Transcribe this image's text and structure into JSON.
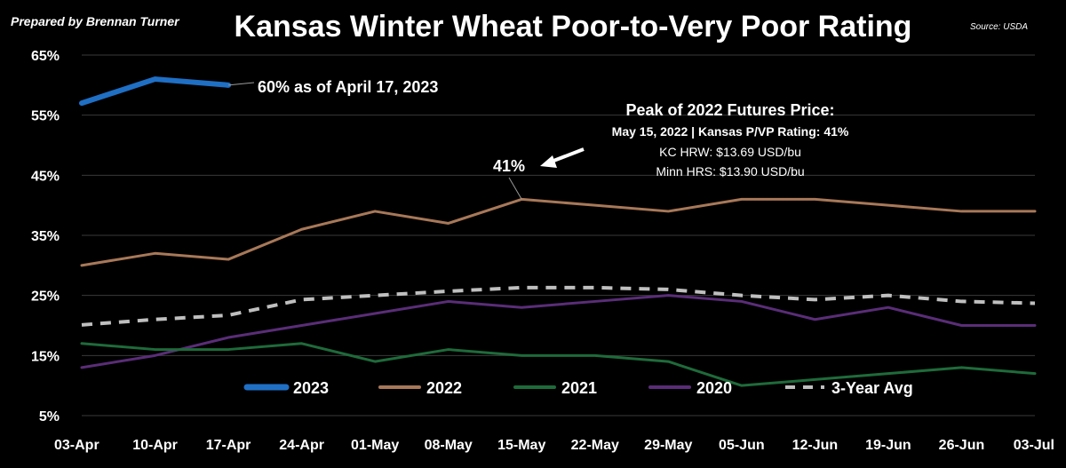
{
  "credit": "Prepared by Brennan Turner",
  "source": "Source: USDA",
  "chart_data": {
    "type": "line",
    "title": "Kansas Winter Wheat Poor-to-Very Poor Rating",
    "xlabel": "",
    "ylabel": "",
    "categories": [
      "03-Apr",
      "10-Apr",
      "17-Apr",
      "24-Apr",
      "01-May",
      "08-May",
      "15-May",
      "22-May",
      "29-May",
      "05-Jun",
      "12-Jun",
      "19-Jun",
      "26-Jun",
      "03-Jul"
    ],
    "y_ticks": [
      "65%",
      "55%",
      "45%",
      "35%",
      "25%",
      "15%",
      "5%"
    ],
    "ylim": [
      5,
      65
    ],
    "y_unit": "%",
    "grid": true,
    "legend_position": "bottom",
    "series": [
      {
        "name": "2023",
        "color": "#1f6fc5",
        "dash": false,
        "width": 6,
        "values": [
          57,
          61,
          60,
          null,
          null,
          null,
          null,
          null,
          null,
          null,
          null,
          null,
          null,
          null
        ]
      },
      {
        "name": "2022",
        "color": "#a87858",
        "dash": false,
        "width": 3,
        "values": [
          30,
          32,
          31,
          36,
          39,
          37,
          41,
          40,
          39,
          41,
          41,
          40,
          39,
          39
        ]
      },
      {
        "name": "2021",
        "color": "#1e6b3a",
        "dash": false,
        "width": 3,
        "values": [
          17,
          16,
          16,
          17,
          14,
          16,
          15,
          15,
          14,
          10,
          11,
          12,
          13,
          12
        ]
      },
      {
        "name": "2020",
        "color": "#5a2d78",
        "dash": false,
        "width": 3,
        "values": [
          13,
          15,
          18,
          20,
          22,
          24,
          23,
          24,
          25,
          24,
          21,
          23,
          20,
          20
        ]
      },
      {
        "name": "3-Year Avg",
        "color": "#bfbfbf",
        "dash": true,
        "width": 4,
        "values": [
          20.1,
          21.0,
          21.7,
          24.3,
          25.0,
          25.7,
          26.3,
          26.3,
          26.0,
          25.0,
          24.3,
          25.0,
          24.0,
          23.7
        ]
      }
    ],
    "annotations": {
      "label_2023": "60% as of April 17, 2023",
      "label_41": "41%",
      "peak_title": "Peak of 2022 Futures Price:",
      "peak_line2": "May 15, 2022 | Kansas P/VP Rating: 41%",
      "peak_line3": "KC HRW: $13.69 USD/bu",
      "peak_line4": "Minn HRS: $13.90 USD/bu"
    }
  }
}
